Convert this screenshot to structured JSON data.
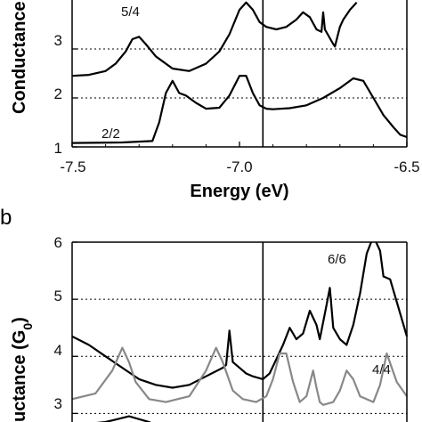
{
  "chart_data": [
    {
      "type": "line",
      "panel": "",
      "xlabel": "Energy (eV)",
      "ylabel": "Conductance",
      "xlim": [
        -7.5,
        -6.5
      ],
      "ylim": [
        1,
        4
      ],
      "x_ticks": [
        "-7.5",
        "-7.0",
        "-6.5"
      ],
      "y_ticks": [
        "1",
        "2",
        "3"
      ],
      "grid": "horizontal dotted",
      "vline_x": -6.93,
      "annotations": [
        {
          "text": "5/4",
          "series": "5/4"
        },
        {
          "text": "2/2",
          "series": "2/2"
        }
      ],
      "series": [
        {
          "name": "5/4",
          "color": "#000000",
          "x": [
            -7.5,
            -7.45,
            -7.4,
            -7.37,
            -7.34,
            -7.32,
            -7.3,
            -7.28,
            -7.25,
            -7.2,
            -7.15,
            -7.1,
            -7.06,
            -7.03,
            -7.0,
            -6.98,
            -6.96,
            -6.94,
            -6.92,
            -6.89,
            -6.86,
            -6.83,
            -6.81,
            -6.79,
            -6.77,
            -6.755,
            -6.75,
            -6.745,
            -6.72,
            -6.715,
            -6.7,
            -6.69,
            -6.67,
            -6.65
          ],
          "y": [
            2.45,
            2.47,
            2.55,
            2.7,
            2.95,
            3.2,
            3.25,
            3.1,
            2.85,
            2.6,
            2.55,
            2.7,
            2.95,
            3.3,
            3.8,
            3.95,
            3.8,
            3.55,
            3.45,
            3.4,
            3.45,
            3.6,
            3.75,
            3.65,
            3.4,
            3.35,
            3.75,
            3.4,
            3.1,
            3.05,
            3.45,
            3.6,
            3.8,
            3.95
          ]
        },
        {
          "name": "2/2",
          "color": "#000000",
          "x": [
            -7.5,
            -7.35,
            -7.26,
            -7.24,
            -7.22,
            -7.2,
            -7.18,
            -7.16,
            -7.13,
            -7.1,
            -7.06,
            -7.03,
            -7.0,
            -6.98,
            -6.96,
            -6.94,
            -6.92,
            -6.9,
            -6.85,
            -6.8,
            -6.75,
            -6.7,
            -6.66,
            -6.63,
            -6.6,
            -6.57,
            -6.54,
            -6.52,
            -6.5
          ],
          "y": [
            1.08,
            1.09,
            1.12,
            1.5,
            2.1,
            2.35,
            2.1,
            2.05,
            1.9,
            1.78,
            1.8,
            2.05,
            2.45,
            2.45,
            2.1,
            1.85,
            1.78,
            1.77,
            1.79,
            1.85,
            2.0,
            2.2,
            2.4,
            2.35,
            2.0,
            1.65,
            1.4,
            1.25,
            1.2
          ]
        }
      ]
    },
    {
      "type": "line",
      "panel": "b",
      "xlabel": "",
      "ylabel": "uctance (G0)",
      "xlim": [
        -7.5,
        -6.5
      ],
      "ylim": [
        2.85,
        6
      ],
      "y_ticks": [
        "3",
        "4",
        "5",
        "6"
      ],
      "grid": "horizontal dotted",
      "vline_x": -6.93,
      "annotations": [
        {
          "text": "6/6",
          "series": "6/6"
        },
        {
          "text": "4/4",
          "series": "4/4"
        }
      ],
      "series": [
        {
          "name": "6/6",
          "color": "#000000",
          "x": [
            -7.5,
            -7.45,
            -7.4,
            -7.35,
            -7.3,
            -7.25,
            -7.2,
            -7.15,
            -7.1,
            -7.05,
            -7.04,
            -7.03,
            -7.02,
            -7.0,
            -6.98,
            -6.96,
            -6.93,
            -6.91,
            -6.89,
            -6.87,
            -6.85,
            -6.83,
            -6.81,
            -6.79,
            -6.77,
            -6.76,
            -6.74,
            -6.73,
            -6.72,
            -6.7,
            -6.68,
            -6.66,
            -6.64,
            -6.62,
            -6.6,
            -6.58,
            -6.57,
            -6.55,
            -6.52,
            -6.5
          ],
          "y": [
            4.35,
            4.2,
            4.0,
            3.8,
            3.6,
            3.5,
            3.45,
            3.5,
            3.65,
            3.8,
            3.85,
            4.45,
            3.9,
            3.8,
            3.7,
            3.65,
            3.6,
            3.7,
            3.95,
            4.2,
            4.5,
            4.3,
            4.4,
            4.8,
            4.55,
            4.3,
            4.9,
            5.2,
            4.5,
            4.3,
            4.2,
            4.55,
            5.1,
            5.8,
            6.1,
            5.85,
            5.4,
            5.35,
            4.75,
            4.35
          ]
        },
        {
          "name": "4/4",
          "color": "#888888",
          "x": [
            -7.5,
            -7.43,
            -7.38,
            -7.35,
            -7.33,
            -7.31,
            -7.27,
            -7.22,
            -7.15,
            -7.1,
            -7.07,
            -7.05,
            -7.02,
            -6.99,
            -6.95,
            -6.92,
            -6.9,
            -6.88,
            -6.86,
            -6.84,
            -6.82,
            -6.8,
            -6.78,
            -6.77,
            -6.76,
            -6.75,
            -6.72,
            -6.7,
            -6.68,
            -6.66,
            -6.64,
            -6.6,
            -6.58,
            -6.56,
            -6.53,
            -6.5
          ],
          "y": [
            3.25,
            3.35,
            3.75,
            4.15,
            3.9,
            3.55,
            3.25,
            3.2,
            3.3,
            3.75,
            4.15,
            3.9,
            3.4,
            3.25,
            3.2,
            3.3,
            3.6,
            4.05,
            4.05,
            3.55,
            3.2,
            3.3,
            3.75,
            3.45,
            3.2,
            3.15,
            3.2,
            3.4,
            3.75,
            3.6,
            3.3,
            3.2,
            3.5,
            4.05,
            3.55,
            3.3
          ]
        },
        {
          "name": "",
          "color": "#000000",
          "x": [
            -7.5,
            -7.48,
            -7.4,
            -7.33,
            -7.27,
            -7.25,
            -7.1,
            -6.95,
            -6.8,
            -6.7,
            -6.6,
            -6.5
          ],
          "y": [
            2.6,
            2.8,
            2.85,
            2.95,
            2.85,
            2.78,
            2.7,
            2.65,
            2.75,
            2.8,
            2.7,
            2.6
          ]
        }
      ]
    }
  ]
}
